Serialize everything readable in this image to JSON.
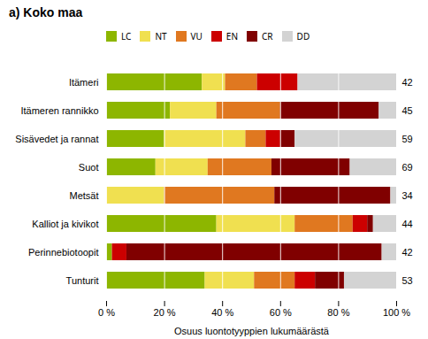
{
  "chart_data": {
    "type": "bar",
    "orientation": "horizontal",
    "stacked": true,
    "title": "a) Koko maa",
    "xlabel": "Osuus luontotyyppien lukumäärästä",
    "categories": [
      "Itämeri",
      "Itämeren rannikko",
      "Sisävedet ja rannat",
      "Suot",
      "Metsät",
      "Kalliot ja kivikot",
      "Perinnebiotoopit",
      "Tunturit"
    ],
    "series": [
      {
        "name": "LC",
        "color": "#8db600",
        "values": [
          33,
          22,
          20,
          17,
          0,
          38,
          2,
          34
        ]
      },
      {
        "name": "NT",
        "color": "#f0e050",
        "values": [
          8,
          16,
          28,
          18,
          20,
          27,
          0,
          17
        ]
      },
      {
        "name": "VU",
        "color": "#e07820",
        "values": [
          11,
          22,
          7,
          22,
          38,
          20,
          0,
          14
        ]
      },
      {
        "name": "EN",
        "color": "#cc0000",
        "values": [
          14,
          0,
          5,
          0,
          0,
          5,
          5,
          7
        ]
      },
      {
        "name": "CR",
        "color": "#800000",
        "values": [
          0,
          34,
          5,
          27,
          40,
          2,
          88,
          10
        ]
      },
      {
        "name": "DD",
        "color": "#d3d3d3",
        "values": [
          34,
          6,
          35,
          16,
          2,
          8,
          5,
          18
        ]
      }
    ],
    "counts": [
      42,
      45,
      59,
      69,
      34,
      44,
      42,
      53
    ],
    "xlim": [
      0,
      100
    ],
    "xticks": [
      {
        "value": 0,
        "label": "0 %"
      },
      {
        "value": 20,
        "label": "20 %"
      },
      {
        "value": 40,
        "label": "40 %"
      },
      {
        "value": 60,
        "label": "60 %"
      },
      {
        "value": 80,
        "label": "80 %"
      },
      {
        "value": 100,
        "label": "100 %"
      }
    ],
    "grid": true,
    "legend": "top"
  }
}
